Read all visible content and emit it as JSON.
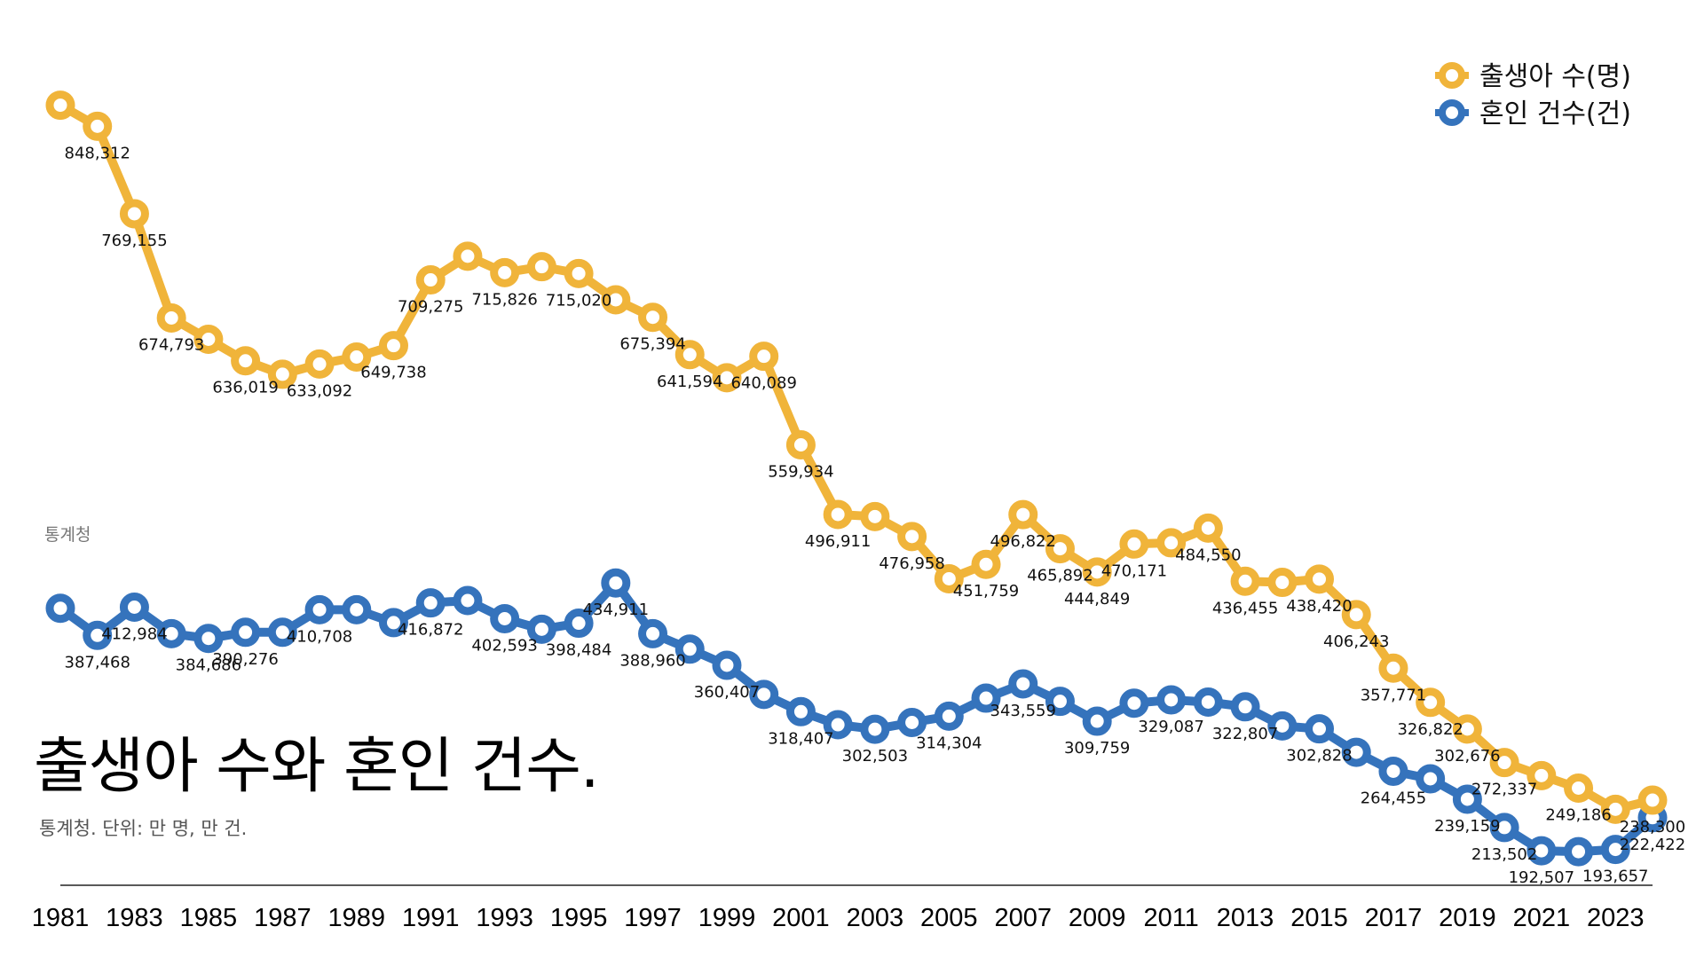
{
  "header": {
    "title": "출생아 수와 혼인 건수.",
    "subtitle": "통계청. 단위: 만 명, 만 건.",
    "watermark": "통계청"
  },
  "colors": {
    "births": "#F0B43A",
    "marriages": "#3573BC",
    "axis": "#222222"
  },
  "chart_data": {
    "type": "line",
    "title": "출생아 수와 혼인 건수.",
    "x": [
      1981,
      1982,
      1983,
      1984,
      1985,
      1986,
      1987,
      1988,
      1989,
      1990,
      1991,
      1992,
      1993,
      1994,
      1995,
      1996,
      1997,
      1998,
      1999,
      2000,
      2001,
      2002,
      2003,
      2004,
      2005,
      2006,
      2007,
      2008,
      2009,
      2010,
      2011,
      2012,
      2013,
      2014,
      2015,
      2016,
      2017,
      2018,
      2019,
      2020,
      2021,
      2022,
      2023,
      2024
    ],
    "xticks": [
      "1981",
      "1983",
      "1985",
      "1987",
      "1989",
      "1991",
      "1993",
      "1995",
      "1997",
      "1999",
      "2001",
      "2003",
      "2005",
      "2007",
      "2009",
      "2011",
      "2013",
      "2015",
      "2017",
      "2019",
      "2021",
      "2023"
    ],
    "ylim": [
      150000,
      900000
    ],
    "grid": false,
    "legend_position": "top-right",
    "series": [
      {
        "name": "출생아 수(명)",
        "color": "#F0B43A",
        "values": [
          867409,
          848312,
          769155,
          674793,
          655489,
          636019,
          623831,
          633092,
          639431,
          649738,
          709275,
          730678,
          715826,
          721185,
          715020,
          691226,
          675394,
          641594,
          620668,
          640089,
          559934,
          496911,
          495036,
          476958,
          438707,
          451759,
          496822,
          465892,
          444849,
          470171,
          471265,
          484550,
          436455,
          435435,
          438420,
          406243,
          357771,
          326822,
          302676,
          272337,
          260562,
          249186,
          230028,
          238300
        ],
        "labels": [
          "",
          "848,312",
          "769,155",
          "674,793",
          "",
          "636,019",
          "",
          "633,092",
          "",
          "649,738",
          "709,275",
          "",
          "715,826",
          "",
          "715,020",
          "",
          "675,394",
          "641,594",
          "",
          "640,089",
          "559,934",
          "496,911",
          "",
          "476,958",
          "",
          "451,759",
          "496,822",
          "465,892",
          "444,849",
          "470,171",
          "",
          "484,550",
          "436,455",
          "",
          "438,420",
          "406,243",
          "357,771",
          "326,822",
          "302,676",
          "272,337",
          "",
          "249,186",
          "",
          "238,300"
        ]
      },
      {
        "name": "혼인 건수(건)",
        "color": "#3573BC",
        "values": [
          412000,
          387468,
          412984,
          389000,
          384686,
          390276,
          390276,
          410708,
          410708,
          399000,
          416872,
          419000,
          402593,
          393000,
          398484,
          434911,
          388960,
          375000,
          360407,
          334030,
          318407,
          306573,
          302503,
          308598,
          314304,
          330634,
          343559,
          327715,
          309759,
          326104,
          329087,
          327073,
          322807,
          305507,
          302828,
          281635,
          264455,
          257622,
          239159,
          213502,
          192507,
          191690,
          193657,
          222422
        ],
        "labels": [
          "",
          "387,468",
          "412,984",
          "",
          "384,686",
          "390,276",
          "",
          "410,708",
          "",
          "",
          "416,872",
          "",
          "402,593",
          "",
          "398,484",
          "434,911",
          "388,960",
          "",
          "360,407",
          "",
          "318,407",
          "",
          "302,503",
          "",
          "314,304",
          "",
          "343,559",
          "",
          "309,759",
          "",
          "329,087",
          "",
          "322,807",
          "",
          "302,828",
          "",
          "264,455",
          "",
          "239,159",
          "213,502",
          "192,507",
          "",
          "193,657",
          "222,422"
        ]
      }
    ]
  }
}
